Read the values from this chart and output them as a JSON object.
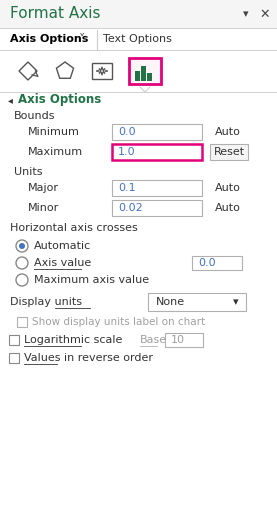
{
  "title": "Format Axis",
  "title_color": "#217346",
  "bg_color": "#ffffff",
  "panel_bg": "#f5f5f5",
  "tab1": "Axis Options",
  "tab2": "Text Options",
  "section_header": "Axis Options",
  "section_color": "#217346",
  "bounds_label": "Bounds",
  "minimum_label": "Minimum",
  "minimum_value": "0.0",
  "minimum_auto": "Auto",
  "maximum_label": "Maximum",
  "maximum_value": "1.0",
  "maximum_reset": "Reset",
  "units_label": "Units",
  "major_label": "Major",
  "major_value": "0.1",
  "major_auto": "Auto",
  "minor_label": "Minor",
  "minor_value": "0.02",
  "minor_auto": "Auto",
  "haxis_label": "Horizontal axis crosses",
  "radio1": "Automatic",
  "radio2": "Axis value",
  "radio2_value": "0.0",
  "radio3": "Maximum axis value",
  "display_label": "Display units",
  "display_value": "None",
  "cb1": "Show display units label on chart",
  "cb2": "Logarithmic scale",
  "base_label": "Base",
  "base_value": "10",
  "cb3": "Values in reverse order",
  "input_bg": "#ffffff",
  "input_text_color": "#4472c4",
  "border_color": "#b0b0b0",
  "highlight_border": "#e0007a",
  "label_color": "#333333",
  "disabled_color": "#a0a0a0",
  "icon_color": "#555555",
  "green_icon": "#217346",
  "separator_color": "#d0d0d0",
  "tab_sep_color": "#cccccc"
}
